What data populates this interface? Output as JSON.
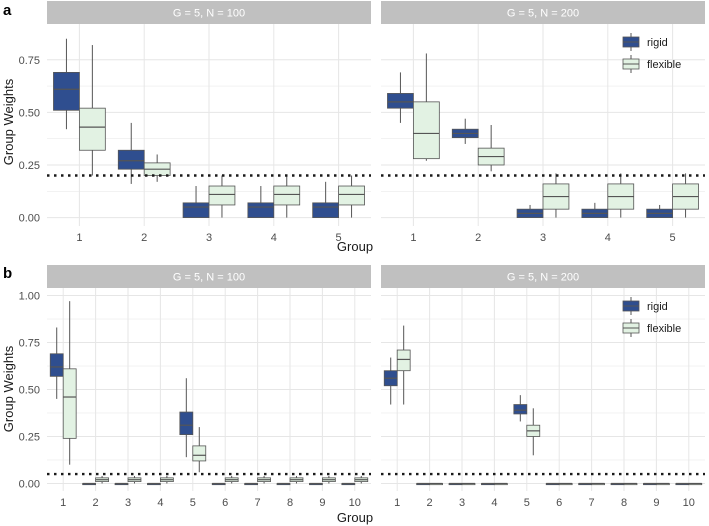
{
  "colors": {
    "rigid": "#2f4e8f",
    "flexible": "#e2f2e3",
    "strip": "#c0c0c0",
    "grid": "#e6e6e6",
    "outline": "#555555"
  },
  "chart_data": [
    {
      "type": "boxplot",
      "tag": "a",
      "xlabel": "Group",
      "ylabel": "Group Weights",
      "ylim": [
        -0.04,
        0.92
      ],
      "yticks": [
        0.0,
        0.25,
        0.5,
        0.75
      ],
      "ytick_labels": [
        "0.00",
        "0.25",
        "0.50",
        "0.75"
      ],
      "categories": [
        "1",
        "2",
        "3",
        "4",
        "5"
      ],
      "reference_line": 0.2,
      "legend": [
        {
          "key": "rigid",
          "label": "rigid"
        },
        {
          "key": "flexible",
          "label": "flexible"
        }
      ],
      "legend_facet": 1,
      "facets": [
        {
          "title": "G = 5, N = 100",
          "series": [
            {
              "name": "rigid",
              "boxes": [
                [
                  0.42,
                  0.51,
                  0.61,
                  0.69,
                  0.85
                ],
                [
                  0.16,
                  0.23,
                  0.27,
                  0.32,
                  0.45
                ],
                [
                  0.0,
                  0.0,
                  0.05,
                  0.07,
                  0.15
                ],
                [
                  0.0,
                  0.0,
                  0.05,
                  0.07,
                  0.15
                ],
                [
                  0.0,
                  0.0,
                  0.05,
                  0.07,
                  0.17
                ]
              ]
            },
            {
              "name": "flexible",
              "boxes": [
                [
                  0.2,
                  0.32,
                  0.43,
                  0.52,
                  0.82
                ],
                [
                  0.17,
                  0.2,
                  0.23,
                  0.26,
                  0.3
                ],
                [
                  0.0,
                  0.06,
                  0.11,
                  0.15,
                  0.2
                ],
                [
                  0.0,
                  0.06,
                  0.11,
                  0.15,
                  0.2
                ],
                [
                  0.0,
                  0.06,
                  0.11,
                  0.15,
                  0.2
                ]
              ]
            }
          ]
        },
        {
          "title": "G = 5, N = 200",
          "series": [
            {
              "name": "rigid",
              "boxes": [
                [
                  0.45,
                  0.52,
                  0.55,
                  0.59,
                  0.69
                ],
                [
                  0.35,
                  0.38,
                  0.4,
                  0.42,
                  0.47
                ],
                [
                  0.0,
                  0.0,
                  0.02,
                  0.04,
                  0.06
                ],
                [
                  0.0,
                  0.0,
                  0.02,
                  0.04,
                  0.07
                ],
                [
                  0.0,
                  0.0,
                  0.02,
                  0.04,
                  0.06
                ]
              ]
            },
            {
              "name": "flexible",
              "boxes": [
                [
                  0.27,
                  0.28,
                  0.4,
                  0.55,
                  0.78
                ],
                [
                  0.22,
                  0.25,
                  0.29,
                  0.33,
                  0.44
                ],
                [
                  0.0,
                  0.04,
                  0.1,
                  0.16,
                  0.21
                ],
                [
                  0.0,
                  0.04,
                  0.1,
                  0.16,
                  0.21
                ],
                [
                  0.0,
                  0.04,
                  0.1,
                  0.16,
                  0.21
                ]
              ]
            }
          ]
        }
      ]
    },
    {
      "type": "boxplot",
      "tag": "b",
      "xlabel": "Group",
      "ylabel": "Group Weights",
      "ylim": [
        -0.04,
        1.04
      ],
      "yticks": [
        0.0,
        0.25,
        0.5,
        0.75,
        1.0
      ],
      "ytick_labels": [
        "0.00",
        "0.25",
        "0.50",
        "0.75",
        "1.00"
      ],
      "categories": [
        "1",
        "2",
        "3",
        "4",
        "5",
        "6",
        "7",
        "8",
        "9",
        "10"
      ],
      "reference_line": 0.05,
      "legend": [
        {
          "key": "rigid",
          "label": "rigid"
        },
        {
          "key": "flexible",
          "label": "flexible"
        }
      ],
      "legend_facet": 1,
      "facets": [
        {
          "title": "G = 5, N = 100",
          "series": [
            {
              "name": "rigid",
              "boxes": [
                [
                  0.45,
                  0.57,
                  0.62,
                  0.69,
                  0.83
                ],
                [
                  0.0,
                  0.0,
                  0.0,
                  0.0,
                  0.0
                ],
                [
                  0.0,
                  0.0,
                  0.0,
                  0.0,
                  0.0
                ],
                [
                  0.0,
                  0.0,
                  0.0,
                  0.0,
                  0.0
                ],
                [
                  0.14,
                  0.26,
                  0.31,
                  0.38,
                  0.56
                ],
                [
                  0.0,
                  0.0,
                  0.0,
                  0.0,
                  0.0
                ],
                [
                  0.0,
                  0.0,
                  0.0,
                  0.0,
                  0.0
                ],
                [
                  0.0,
                  0.0,
                  0.0,
                  0.0,
                  0.0
                ],
                [
                  0.0,
                  0.0,
                  0.0,
                  0.0,
                  0.0
                ],
                [
                  0.0,
                  0.0,
                  0.0,
                  0.0,
                  0.0
                ]
              ]
            },
            {
              "name": "flexible",
              "boxes": [
                [
                  0.1,
                  0.24,
                  0.46,
                  0.61,
                  0.97
                ],
                [
                  0.0,
                  0.01,
                  0.02,
                  0.03,
                  0.04
                ],
                [
                  0.0,
                  0.01,
                  0.02,
                  0.03,
                  0.04
                ],
                [
                  0.0,
                  0.01,
                  0.02,
                  0.03,
                  0.04
                ],
                [
                  0.06,
                  0.12,
                  0.15,
                  0.2,
                  0.3
                ],
                [
                  0.0,
                  0.01,
                  0.02,
                  0.03,
                  0.04
                ],
                [
                  0.0,
                  0.01,
                  0.02,
                  0.03,
                  0.04
                ],
                [
                  0.0,
                  0.01,
                  0.02,
                  0.03,
                  0.04
                ],
                [
                  0.0,
                  0.01,
                  0.02,
                  0.03,
                  0.04
                ],
                [
                  0.0,
                  0.01,
                  0.02,
                  0.03,
                  0.04
                ]
              ]
            }
          ]
        },
        {
          "title": "G = 5, N = 200",
          "series": [
            {
              "name": "rigid",
              "boxes": [
                [
                  0.42,
                  0.52,
                  0.56,
                  0.6,
                  0.67
                ],
                [
                  0.0,
                  0.0,
                  0.0,
                  0.0,
                  0.0
                ],
                [
                  0.0,
                  0.0,
                  0.0,
                  0.0,
                  0.0
                ],
                [
                  0.0,
                  0.0,
                  0.0,
                  0.0,
                  0.0
                ],
                [
                  0.33,
                  0.37,
                  0.39,
                  0.42,
                  0.47
                ],
                [
                  0.0,
                  0.0,
                  0.0,
                  0.0,
                  0.0
                ],
                [
                  0.0,
                  0.0,
                  0.0,
                  0.0,
                  0.0
                ],
                [
                  0.0,
                  0.0,
                  0.0,
                  0.0,
                  0.0
                ],
                [
                  0.0,
                  0.0,
                  0.0,
                  0.0,
                  0.0
                ],
                [
                  0.0,
                  0.0,
                  0.0,
                  0.0,
                  0.0
                ]
              ]
            },
            {
              "name": "flexible",
              "boxes": [
                [
                  0.42,
                  0.6,
                  0.66,
                  0.71,
                  0.84
                ],
                [
                  0.0,
                  0.0,
                  0.0,
                  0.0,
                  0.0
                ],
                [
                  0.0,
                  0.0,
                  0.0,
                  0.0,
                  0.0
                ],
                [
                  0.0,
                  0.0,
                  0.0,
                  0.0,
                  0.0
                ],
                [
                  0.15,
                  0.25,
                  0.28,
                  0.31,
                  0.4
                ],
                [
                  0.0,
                  0.0,
                  0.0,
                  0.0,
                  0.0
                ],
                [
                  0.0,
                  0.0,
                  0.0,
                  0.0,
                  0.0
                ],
                [
                  0.0,
                  0.0,
                  0.0,
                  0.0,
                  0.0
                ],
                [
                  0.0,
                  0.0,
                  0.0,
                  0.0,
                  0.0
                ],
                [
                  0.0,
                  0.0,
                  0.0,
                  0.0,
                  0.0
                ]
              ]
            }
          ]
        }
      ]
    }
  ]
}
